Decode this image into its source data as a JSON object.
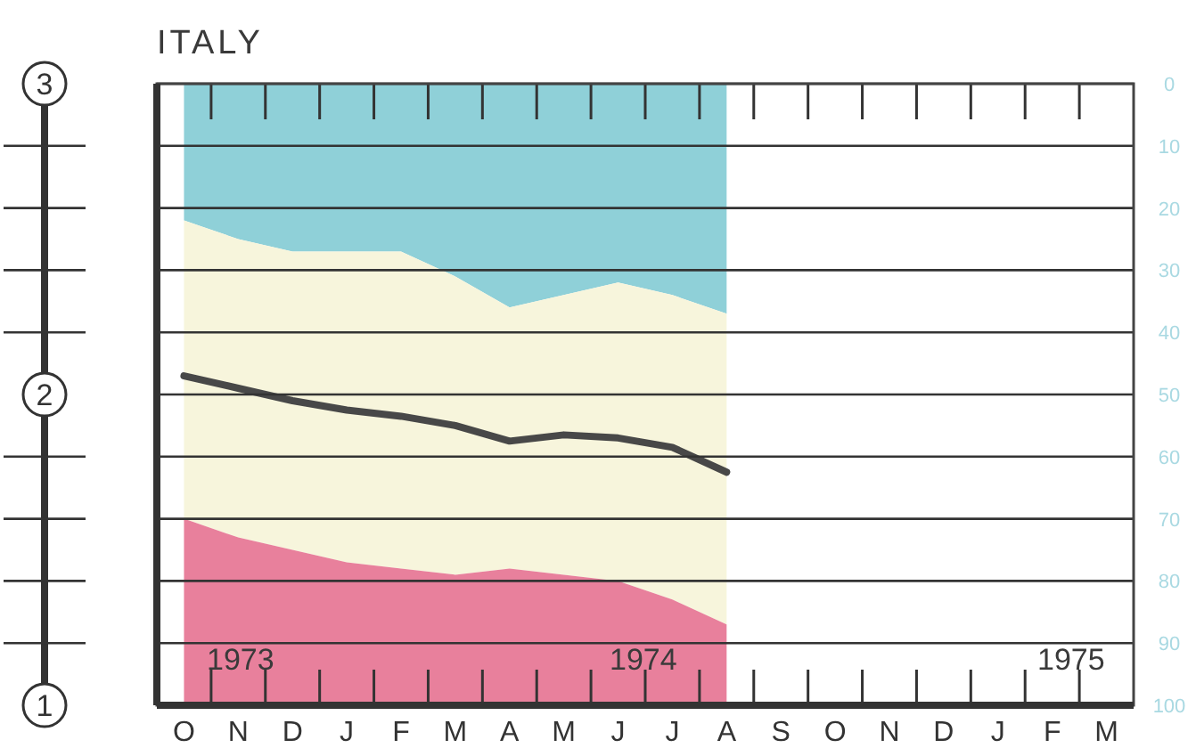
{
  "chart_data": {
    "type": "area",
    "title": "ITALY",
    "stacked": true,
    "grid": "y",
    "categories": [
      "O",
      "N",
      "D",
      "J",
      "F",
      "M",
      "A",
      "M",
      "J",
      "J",
      "A",
      "S",
      "O",
      "N",
      "D",
      "J",
      "F",
      "M"
    ],
    "ylim": [
      100,
      0
    ],
    "yticks": [
      0,
      10,
      20,
      30,
      40,
      50,
      60,
      70,
      80,
      90,
      100
    ],
    "y2lim": [
      1,
      3
    ],
    "y2ticks": [
      1,
      {
        "value": 1.2,
        "label": null
      },
      {
        "value": 1.4,
        "label": null
      },
      {
        "value": 1.6,
        "label": null
      },
      {
        "value": 1.8,
        "label": null
      },
      2,
      {
        "value": 2.2,
        "label": null
      },
      {
        "value": 2.4,
        "label": null
      },
      {
        "value": 2.6,
        "label": null
      },
      {
        "value": 2.8,
        "label": null
      },
      3
    ],
    "series": [
      {
        "color": "#8fd0d8",
        "values": [
          22,
          25,
          27,
          27,
          27,
          31,
          36,
          34,
          32,
          34,
          37,
          null,
          null,
          null,
          null,
          null,
          null,
          null
        ]
      },
      {
        "color": "#f7f5dc",
        "values": [
          48,
          48,
          48,
          50,
          51,
          48,
          42,
          45,
          48,
          49,
          50,
          null,
          null,
          null,
          null,
          null,
          null,
          null
        ]
      },
      {
        "color": "#e8809c",
        "values": [
          30,
          27,
          25,
          23,
          22,
          21,
          22,
          21,
          20,
          17,
          13,
          null,
          null,
          null,
          null,
          null,
          null,
          null
        ]
      },
      {
        "type": "line",
        "axis": "y2",
        "color": "#484848",
        "values": [
          2.06,
          2.02,
          1.98,
          1.95,
          1.93,
          1.9,
          1.85,
          1.87,
          1.86,
          1.83,
          1.75,
          null,
          null,
          null,
          null,
          null,
          null,
          null
        ]
      }
    ],
    "annotations": [
      "1973",
      "1974",
      "1975"
    ]
  }
}
